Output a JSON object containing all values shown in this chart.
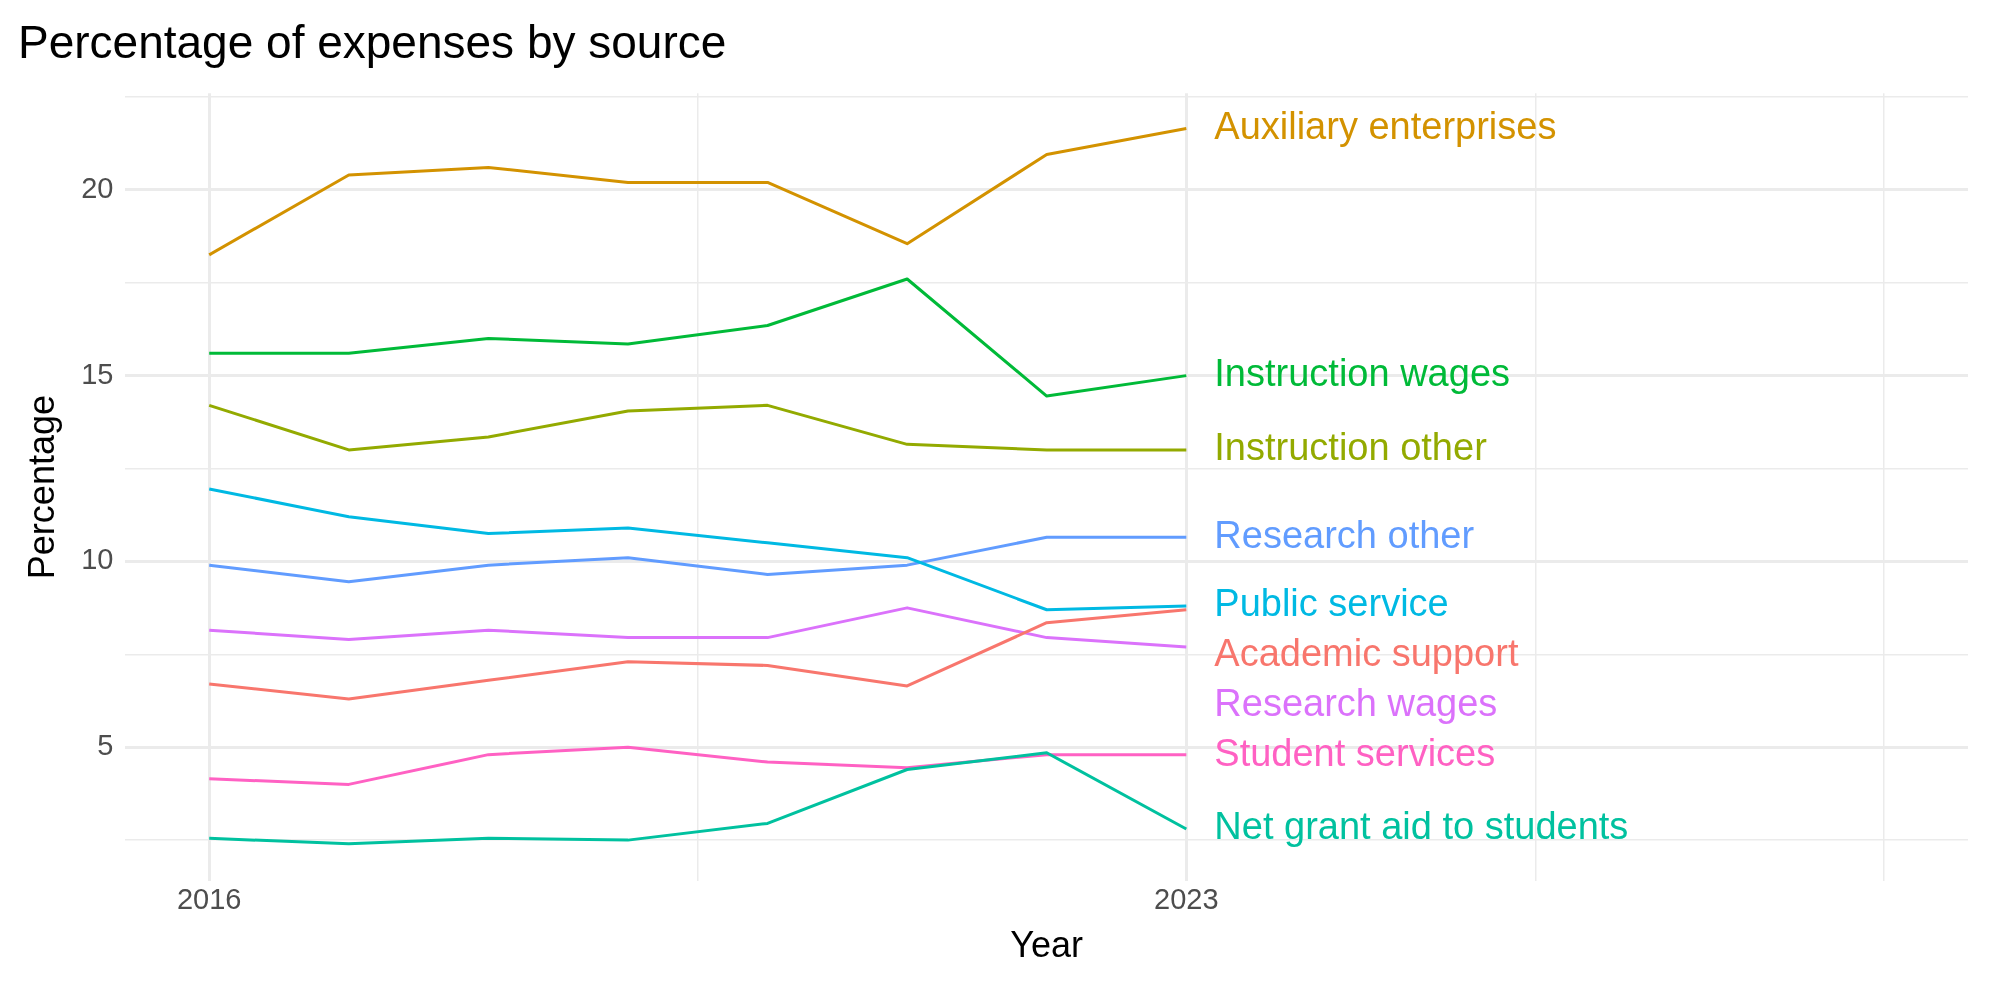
{
  "chart_data": {
    "type": "line",
    "title": "Percentage of expenses by source",
    "xlabel": "Year",
    "ylabel": "Percentage",
    "x": [
      2016,
      2017,
      2018,
      2019,
      2020,
      2021,
      2022,
      2023
    ],
    "series": [
      {
        "name": "Academic support",
        "color": "#f8766d",
        "values": [
          6.7,
          6.3,
          6.8,
          7.3,
          7.2,
          6.65,
          8.35,
          8.7
        ]
      },
      {
        "name": "Auxiliary enterprises",
        "color": "#d39200",
        "values": [
          18.25,
          20.4,
          20.6,
          20.2,
          20.2,
          18.55,
          20.95,
          21.65
        ]
      },
      {
        "name": "Instruction other",
        "color": "#93aa00",
        "values": [
          14.2,
          13.0,
          13.35,
          14.05,
          14.2,
          13.15,
          13.0,
          13.0
        ]
      },
      {
        "name": "Instruction wages",
        "color": "#00ba38",
        "values": [
          15.6,
          15.6,
          16.0,
          15.85,
          16.35,
          17.6,
          14.45,
          15.0
        ]
      },
      {
        "name": "Net grant aid to students",
        "color": "#00c19f",
        "values": [
          2.55,
          2.4,
          2.55,
          2.5,
          2.95,
          4.4,
          4.85,
          2.8
        ]
      },
      {
        "name": "Public service",
        "color": "#00b9e3",
        "values": [
          11.95,
          11.2,
          10.75,
          10.9,
          10.5,
          10.1,
          8.7,
          8.8
        ]
      },
      {
        "name": "Research other",
        "color": "#619cff",
        "values": [
          9.9,
          9.45,
          9.9,
          10.1,
          9.65,
          9.9,
          10.65,
          10.65
        ]
      },
      {
        "name": "Research wages",
        "color": "#db72fb",
        "values": [
          8.15,
          7.9,
          8.15,
          7.95,
          7.95,
          8.75,
          7.95,
          7.7
        ]
      },
      {
        "name": "Student services",
        "color": "#ff61c3",
        "values": [
          4.15,
          4.0,
          4.8,
          5.0,
          4.6,
          4.45,
          4.8,
          4.8
        ]
      }
    ],
    "xlim": [
      2015.4,
      2028.6
    ],
    "xticks": [
      2016,
      {
        "value": 2019.5,
        "label": null
      },
      2023,
      {
        "value": 2025.5,
        "label": null
      },
      {
        "value": 2028,
        "label": null
      }
    ],
    "ylim": [
      1.4,
      22.6
    ],
    "yticks": [
      {
        "value": 2.5,
        "label": null
      },
      5,
      {
        "value": 7.5,
        "label": null
      },
      10,
      {
        "value": 12.5,
        "label": null
      },
      15,
      {
        "value": 17.5,
        "label": null
      },
      20,
      {
        "value": 22.5,
        "label": null
      }
    ],
    "grid": true,
    "legend": false,
    "marker": "none",
    "line_style": "solid"
  }
}
